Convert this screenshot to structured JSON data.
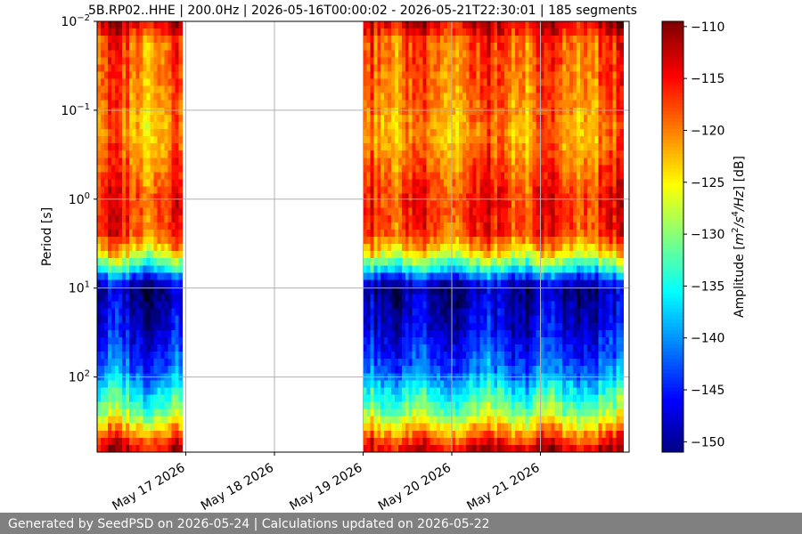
{
  "chart_data": {
    "type": "heatmap",
    "title": "5B.RP02..HHE | 200.0Hz | 2026-05-16T00:00:02 - 2026-05-21T22:30:01 | 185 segments",
    "ylabel": "Period [s]",
    "xlabel": "",
    "x_axis": {
      "type": "date",
      "range": [
        "2026-05-16",
        "2026-05-22"
      ],
      "ticks": [
        {
          "value": "2026-05-17",
          "label": "May 17 2026"
        },
        {
          "value": "2026-05-18",
          "label": "May 18 2026"
        },
        {
          "value": "2026-05-19",
          "label": "May 19 2026"
        },
        {
          "value": "2026-05-20",
          "label": "May 20 2026"
        },
        {
          "value": "2026-05-21",
          "label": "May 21 2026"
        }
      ]
    },
    "y_axis": {
      "scale": "log",
      "inverted": true,
      "range": [
        0.01,
        700
      ],
      "ticks": [
        {
          "value": 0.01,
          "base": "10",
          "exp": "−2"
        },
        {
          "value": 0.1,
          "base": "10",
          "exp": "−1"
        },
        {
          "value": 1,
          "base": "10",
          "exp": "0"
        },
        {
          "value": 10,
          "base": "10",
          "exp": "1"
        },
        {
          "value": 100,
          "base": "10",
          "exp": "2"
        }
      ]
    },
    "grid": true,
    "colormap": "jet",
    "colorbar": {
      "label_main": "Amplitude [",
      "label_var1": "m",
      "label_exp1": "2",
      "label_sep": "/",
      "label_var2": "s",
      "label_exp2": "4",
      "label_tail": "/Hz",
      "label_close": "] [dB]",
      "range": [
        -151,
        -109.5
      ],
      "ticks": [
        -110,
        -115,
        -120,
        -125,
        -130,
        -135,
        -140,
        -145,
        -150
      ],
      "tick_labels": [
        "−110",
        "−115",
        "−120",
        "−125",
        "−130",
        "−135",
        "−140",
        "−145",
        "−150"
      ]
    },
    "data_segments": [
      {
        "start": "2026-05-16",
        "end": "2026-05-16T23:00"
      },
      {
        "start": "2026-05-19",
        "end": "2026-05-19T23:45"
      },
      {
        "start": "2026-05-20",
        "end": "2026-05-20T23:45"
      },
      {
        "start": "2026-05-21",
        "end": "2026-05-21T22:30"
      }
    ],
    "amplitude_profile": [
      {
        "period": 0.01,
        "db": -114
      },
      {
        "period": 0.012,
        "db": -113
      },
      {
        "period": 0.015,
        "db": -118
      },
      {
        "period": 0.05,
        "db": -119
      },
      {
        "period": 0.2,
        "db": -121
      },
      {
        "period": 0.5,
        "db": -118
      },
      {
        "period": 1,
        "db": -116
      },
      {
        "period": 2.5,
        "db": -117
      },
      {
        "period": 4,
        "db": -124
      },
      {
        "period": 6,
        "db": -135
      },
      {
        "period": 8,
        "db": -145
      },
      {
        "period": 10,
        "db": -150
      },
      {
        "period": 30,
        "db": -147
      },
      {
        "period": 80,
        "db": -142
      },
      {
        "period": 150,
        "db": -135
      },
      {
        "period": 250,
        "db": -130
      },
      {
        "period": 350,
        "db": -124
      },
      {
        "period": 480,
        "db": -118
      },
      {
        "period": 700,
        "db": -112
      }
    ]
  },
  "footer": {
    "text": "Generated by SeedPSD on 2026-05-24 | Calculations updated on 2026-05-22"
  }
}
